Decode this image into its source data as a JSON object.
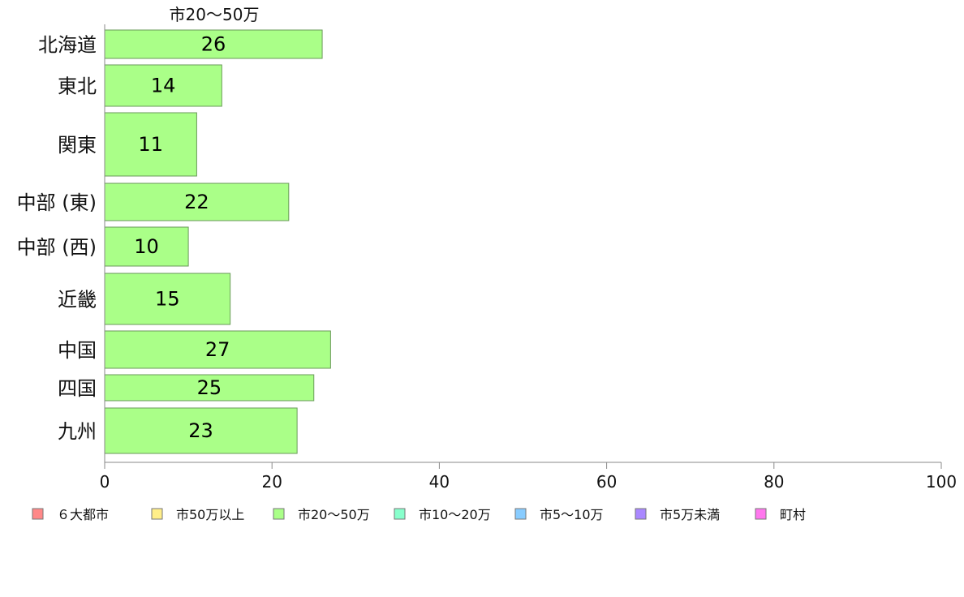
{
  "chart_data": {
    "type": "bar",
    "orientation": "horizontal",
    "title": "市20〜50万",
    "categories": [
      "北海道",
      "東北",
      "関東",
      "中部 (東)",
      "中部 (西)",
      "近畿",
      "中国",
      "四国",
      "九州"
    ],
    "series": [
      {
        "name": "市20〜50万",
        "values": [
          26,
          14,
          11,
          22,
          10,
          15,
          27,
          25,
          23
        ],
        "color": "#aaff88"
      }
    ],
    "xlim": [
      0,
      100
    ],
    "xticks": [
      0,
      20,
      40,
      60,
      80,
      100
    ],
    "grid": false,
    "legend_position": "bottom",
    "legend": [
      {
        "label": "６大都市",
        "color": "#ff8888"
      },
      {
        "label": "市50万以上",
        "color": "#ffee88"
      },
      {
        "label": "市20〜50万",
        "color": "#aaff88"
      },
      {
        "label": "市10〜20万",
        "color": "#88ffcc"
      },
      {
        "label": "市5〜10万",
        "color": "#88ccff"
      },
      {
        "label": "市5万未満",
        "color": "#aa88ff"
      },
      {
        "label": "町村",
        "color": "#ff77ee"
      }
    ]
  }
}
